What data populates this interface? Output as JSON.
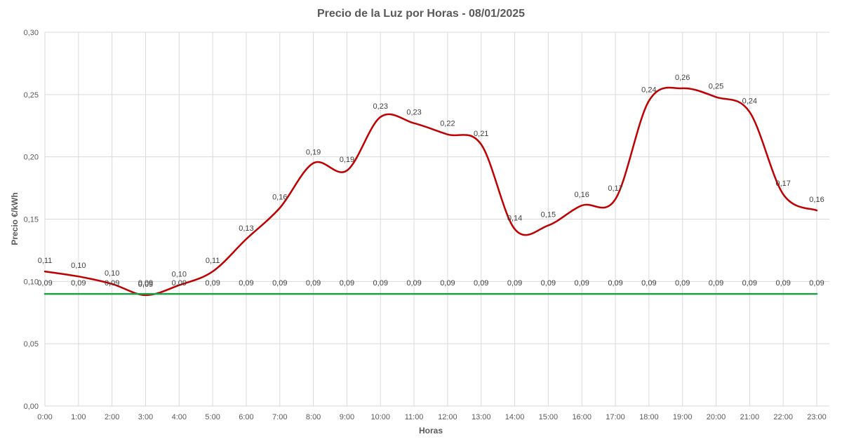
{
  "chart_data": {
    "type": "line",
    "title": "Precio de la Luz por Horas - 08/01/2025",
    "xlabel": "Horas",
    "ylabel": "Precio €/kWh",
    "ylim": [
      0,
      0.3
    ],
    "yticks": [
      "0,00",
      "0,05",
      "0,10",
      "0,15",
      "0,20",
      "0,25",
      "0,30"
    ],
    "grid": true,
    "legend": "none",
    "categories": [
      "0:00",
      "1:00",
      "2:00",
      "3:00",
      "4:00",
      "5:00",
      "6:00",
      "7:00",
      "8:00",
      "9:00",
      "10:00",
      "11:00",
      "12:00",
      "13:00",
      "14:00",
      "15:00",
      "16:00",
      "17:00",
      "18:00",
      "19:00",
      "20:00",
      "21:00",
      "22:00",
      "23:00"
    ],
    "series": [
      {
        "color": "#c00000",
        "smooth": true,
        "values": [
          0.108,
          0.104,
          0.098,
          0.089,
          0.097,
          0.108,
          0.134,
          0.159,
          0.195,
          0.189,
          0.232,
          0.227,
          0.218,
          0.21,
          0.142,
          0.145,
          0.161,
          0.166,
          0.245,
          0.255,
          0.248,
          0.236,
          0.17,
          0.157
        ],
        "labels": [
          "0,11",
          "0,10",
          "0,10",
          "0,09",
          "0,10",
          "0,11",
          "0,13",
          "0,16",
          "0,19",
          "0,19",
          "0,23",
          "0,23",
          "0,22",
          "0,21",
          "0,14",
          "0,15",
          "0,16",
          "0,17",
          "0,24",
          "0,26",
          "0,25",
          "0,24",
          "0,17",
          "0,16"
        ]
      },
      {
        "color": "#1e9e48",
        "smooth": false,
        "values": [
          0.09,
          0.09,
          0.09,
          0.09,
          0.09,
          0.09,
          0.09,
          0.09,
          0.09,
          0.09,
          0.09,
          0.09,
          0.09,
          0.09,
          0.09,
          0.09,
          0.09,
          0.09,
          0.09,
          0.09,
          0.09,
          0.09,
          0.09,
          0.09
        ],
        "labels": [
          "0,09",
          "0,09",
          "0,09",
          "0,09",
          "0,09",
          "0,09",
          "0,09",
          "0,09",
          "0,09",
          "0,09",
          "0,09",
          "0,09",
          "0,09",
          "0,09",
          "0,09",
          "0,09",
          "0,09",
          "0,09",
          "0,09",
          "0,09",
          "0,09",
          "0,09",
          "0,09",
          "0,09"
        ]
      }
    ]
  }
}
